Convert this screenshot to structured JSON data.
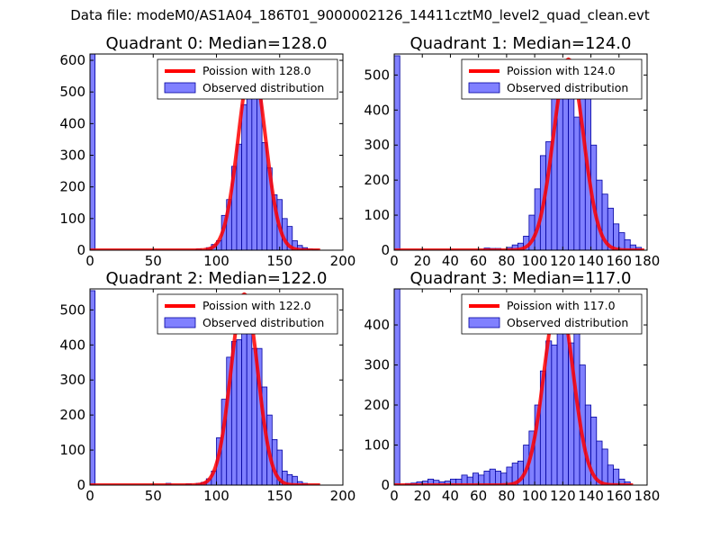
{
  "suptitle": "Data file: modeM0/AS1A04_186T01_9000002126_14411cztM0_level2_quad_clean.evt",
  "colors": {
    "bar_fill": "#8080ff",
    "bar_edge": "#0000a0",
    "curve": "#ff0000",
    "axes": "#000000",
    "background": "#ffffff"
  },
  "chart_data": [
    {
      "type": "bar",
      "title": "Quadrant 0: Median=128.0",
      "xlim": [
        0,
        200
      ],
      "ylim": [
        0,
        620
      ],
      "xticks": [
        0,
        50,
        100,
        150,
        200
      ],
      "yticks": [
        0,
        100,
        200,
        300,
        400,
        500,
        600
      ],
      "bin_width": 4,
      "legend": {
        "location": "top-right",
        "curve_label": "Poission with 128.0",
        "bar_label": "Observed distribution"
      },
      "bins": [
        [
          0,
          620
        ],
        [
          84,
          4
        ],
        [
          92,
          8
        ],
        [
          96,
          18
        ],
        [
          100,
          30
        ],
        [
          104,
          110
        ],
        [
          108,
          160
        ],
        [
          112,
          265
        ],
        [
          116,
          335
        ],
        [
          120,
          460
        ],
        [
          124,
          495
        ],
        [
          128,
          590
        ],
        [
          132,
          510
        ],
        [
          136,
          340
        ],
        [
          140,
          260
        ],
        [
          144,
          175
        ],
        [
          148,
          160
        ],
        [
          152,
          100
        ],
        [
          156,
          75
        ],
        [
          160,
          30
        ],
        [
          164,
          15
        ],
        [
          168,
          8
        ],
        [
          172,
          4
        ],
        [
          176,
          2
        ]
      ],
      "poisson_mean": 128,
      "poisson_peak": 590,
      "poisson_range": [
        0,
        182
      ]
    },
    {
      "type": "bar",
      "title": "Quadrant 1: Median=124.0",
      "xlim": [
        0,
        180
      ],
      "ylim": [
        0,
        560
      ],
      "xticks": [
        0,
        20,
        40,
        60,
        80,
        100,
        120,
        140,
        160,
        180
      ],
      "yticks": [
        0,
        100,
        200,
        300,
        400,
        500
      ],
      "bin_width": 4,
      "legend": {
        "location": "top-right",
        "curve_label": "Poission with 124.0",
        "bar_label": "Observed distribution"
      },
      "bins": [
        [
          0,
          555
        ],
        [
          64,
          6
        ],
        [
          68,
          5
        ],
        [
          72,
          5
        ],
        [
          80,
          8
        ],
        [
          84,
          15
        ],
        [
          88,
          20
        ],
        [
          92,
          40
        ],
        [
          96,
          100
        ],
        [
          100,
          175
        ],
        [
          104,
          270
        ],
        [
          108,
          310
        ],
        [
          112,
          470
        ],
        [
          116,
          540
        ],
        [
          120,
          480
        ],
        [
          124,
          470
        ],
        [
          128,
          380
        ],
        [
          132,
          500
        ],
        [
          136,
          440
        ],
        [
          140,
          300
        ],
        [
          144,
          200
        ],
        [
          148,
          160
        ],
        [
          152,
          120
        ],
        [
          156,
          75
        ],
        [
          160,
          50
        ],
        [
          164,
          30
        ],
        [
          168,
          15
        ],
        [
          172,
          8
        ]
      ],
      "poisson_mean": 124,
      "poisson_peak": 545,
      "poisson_range": [
        0,
        178
      ]
    },
    {
      "type": "bar",
      "title": "Quadrant 2: Median=122.0",
      "xlim": [
        0,
        200
      ],
      "ylim": [
        0,
        560
      ],
      "xticks": [
        0,
        50,
        100,
        150,
        200
      ],
      "yticks": [
        0,
        100,
        200,
        300,
        400,
        500
      ],
      "bin_width": 4,
      "legend": {
        "location": "top-right",
        "curve_label": "Poission with 122.0",
        "bar_label": "Observed distribution"
      },
      "bins": [
        [
          0,
          555
        ],
        [
          60,
          5
        ],
        [
          76,
          4
        ],
        [
          84,
          5
        ],
        [
          88,
          8
        ],
        [
          92,
          18
        ],
        [
          96,
          40
        ],
        [
          100,
          135
        ],
        [
          104,
          245
        ],
        [
          108,
          365
        ],
        [
          112,
          410
        ],
        [
          116,
          415
        ],
        [
          120,
          530
        ],
        [
          124,
          475
        ],
        [
          128,
          390
        ],
        [
          132,
          390
        ],
        [
          136,
          280
        ],
        [
          140,
          200
        ],
        [
          144,
          130
        ],
        [
          148,
          100
        ],
        [
          152,
          40
        ],
        [
          156,
          30
        ],
        [
          160,
          25
        ],
        [
          164,
          10
        ],
        [
          168,
          5
        ]
      ],
      "poisson_mean": 122,
      "poisson_peak": 545,
      "poisson_range": [
        0,
        182
      ]
    },
    {
      "type": "bar",
      "title": "Quadrant 3: Median=117.0",
      "xlim": [
        0,
        180
      ],
      "ylim": [
        0,
        490
      ],
      "xticks": [
        0,
        20,
        40,
        60,
        80,
        100,
        120,
        140,
        160,
        180
      ],
      "yticks": [
        0,
        100,
        200,
        300,
        400
      ],
      "bin_width": 4,
      "legend": {
        "location": "top-right",
        "curve_label": "Poission with 117.0",
        "bar_label": "Observed distribution"
      },
      "bins": [
        [
          0,
          490
        ],
        [
          8,
          4
        ],
        [
          12,
          5
        ],
        [
          16,
          8
        ],
        [
          20,
          10
        ],
        [
          24,
          15
        ],
        [
          28,
          12
        ],
        [
          32,
          8
        ],
        [
          36,
          10
        ],
        [
          40,
          15
        ],
        [
          44,
          15
        ],
        [
          48,
          25
        ],
        [
          52,
          20
        ],
        [
          56,
          30
        ],
        [
          60,
          25
        ],
        [
          64,
          35
        ],
        [
          68,
          40
        ],
        [
          72,
          35
        ],
        [
          76,
          30
        ],
        [
          80,
          45
        ],
        [
          84,
          55
        ],
        [
          88,
          60
        ],
        [
          92,
          100
        ],
        [
          96,
          135
        ],
        [
          100,
          200
        ],
        [
          104,
          285
        ],
        [
          108,
          360
        ],
        [
          112,
          350
        ],
        [
          116,
          380
        ],
        [
          120,
          475
        ],
        [
          124,
          355
        ],
        [
          128,
          395
        ],
        [
          132,
          300
        ],
        [
          136,
          200
        ],
        [
          140,
          170
        ],
        [
          144,
          110
        ],
        [
          148,
          90
        ],
        [
          152,
          50
        ],
        [
          156,
          40
        ],
        [
          160,
          15
        ],
        [
          164,
          8
        ]
      ],
      "poisson_mean": 117,
      "poisson_peak": 470,
      "poisson_range": [
        0,
        170
      ]
    }
  ]
}
